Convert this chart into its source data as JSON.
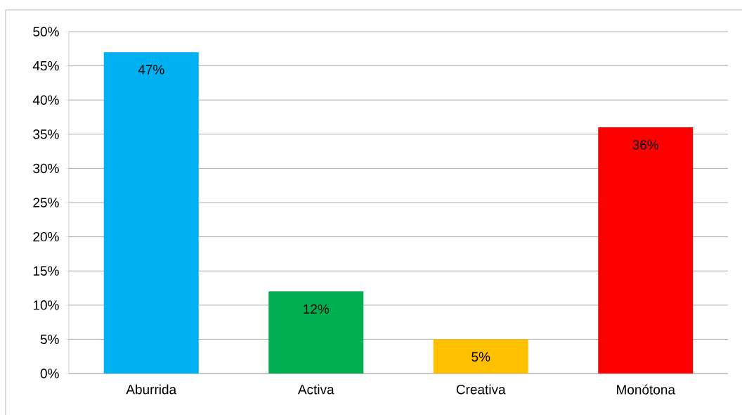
{
  "chart_data": {
    "type": "bar",
    "categories": [
      "Aburrida",
      "Activa",
      "Creativa",
      "Monótona"
    ],
    "values": [
      47,
      12,
      5,
      36
    ],
    "colors": [
      "#00b0f0",
      "#00b050",
      "#ffc000",
      "#ff0000"
    ],
    "value_labels": [
      "47%",
      "12%",
      "5%",
      "36%"
    ],
    "ylim": [
      0,
      50
    ],
    "yticks": [
      {
        "value": 0,
        "label": "0%"
      },
      {
        "value": 5,
        "label": "5%"
      },
      {
        "value": 10,
        "label": "10%"
      },
      {
        "value": 15,
        "label": "15%"
      },
      {
        "value": 20,
        "label": "20%"
      },
      {
        "value": 25,
        "label": "25%"
      },
      {
        "value": 30,
        "label": "30%"
      },
      {
        "value": 35,
        "label": "35%"
      },
      {
        "value": 40,
        "label": "40%"
      },
      {
        "value": 45,
        "label": "45%"
      },
      {
        "value": 50,
        "label": "50%"
      }
    ],
    "grid": "y"
  }
}
